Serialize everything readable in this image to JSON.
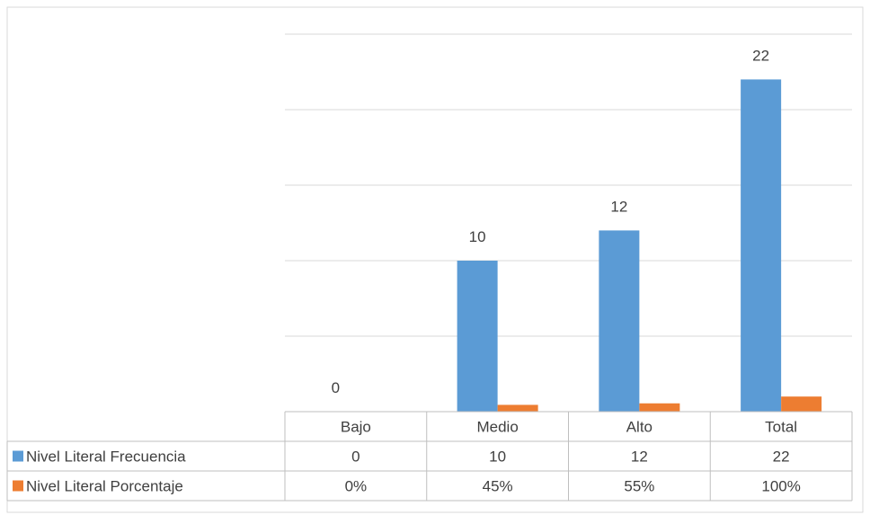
{
  "chart_data": {
    "type": "bar",
    "categories": [
      "Bajo",
      "Medio",
      "Alto",
      "Total"
    ],
    "series": [
      {
        "name": "Nivel Literal Frecuencia",
        "values": [
          0,
          10,
          12,
          22
        ],
        "value_labels": [
          "0",
          "10",
          "12",
          "22"
        ],
        "table_values": [
          "0",
          "10",
          "12",
          "22"
        ],
        "color": "#5b9bd5"
      },
      {
        "name": "Nivel Literal Porcentaje",
        "values": [
          0,
          0.45,
          0.55,
          1.0
        ],
        "table_values": [
          "0%",
          "45%",
          "55%",
          "100%"
        ],
        "color": "#ed7d31"
      }
    ],
    "ylim": [
      0,
      25
    ],
    "grid": true,
    "legend": "data-table"
  }
}
